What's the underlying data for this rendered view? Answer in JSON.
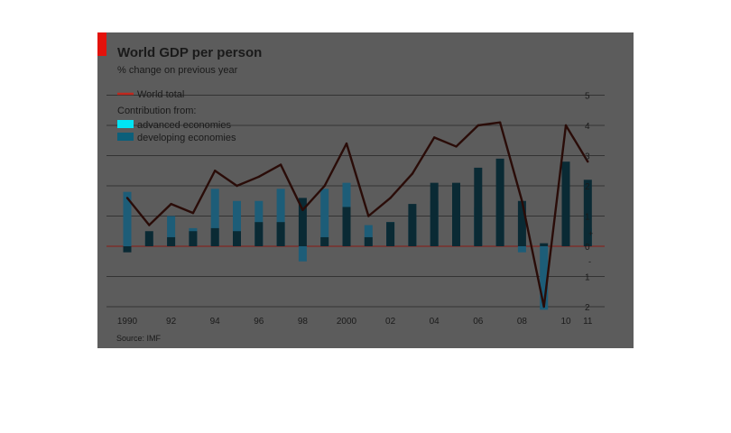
{
  "chart_data": {
    "type": "bar",
    "title": "World GDP per person",
    "subtitle": "% change on previous year",
    "source": "Source: IMF",
    "legend": {
      "line_label": "World total",
      "group_heading": "Contribution from:",
      "placement": "top-left"
    },
    "x_tick_labels": [
      {
        "year": 1990,
        "label": "1990"
      },
      {
        "year": 1992,
        "label": "92"
      },
      {
        "year": 1994,
        "label": "94"
      },
      {
        "year": 1996,
        "label": "96"
      },
      {
        "year": 1998,
        "label": "98"
      },
      {
        "year": 2000,
        "label": "2000"
      },
      {
        "year": 2002,
        "label": "02"
      },
      {
        "year": 2004,
        "label": "04"
      },
      {
        "year": 2006,
        "label": "06"
      },
      {
        "year": 2008,
        "label": "08"
      },
      {
        "year": 2010,
        "label": "10"
      },
      {
        "year": 2011,
        "label": "11"
      }
    ],
    "y_ticks": [
      {
        "value": 5,
        "label": "5"
      },
      {
        "value": 4,
        "label": "4"
      },
      {
        "value": 3,
        "label": "3"
      },
      {
        "value": 2,
        "label": "2"
      },
      {
        "value": 1,
        "label": "1"
      },
      {
        "value": 0,
        "label": "0"
      },
      {
        "value": -1,
        "label": "1"
      },
      {
        "value": -2,
        "label": "2"
      }
    ],
    "y_sign_labels": {
      "plus": "+",
      "minus": "-"
    },
    "ylim": [
      -2,
      5
    ],
    "grid": true,
    "categories": [
      1990,
      1991,
      1992,
      1993,
      1994,
      1995,
      1996,
      1997,
      1998,
      1999,
      2000,
      2001,
      2002,
      2003,
      2004,
      2005,
      2006,
      2007,
      2008,
      2009,
      2010,
      2011
    ],
    "series": [
      {
        "name": "advanced economies",
        "role": "bar-stack",
        "color": "#00e5f5",
        "values": [
          1.8,
          0.2,
          1.0,
          0.6,
          1.9,
          1.5,
          1.5,
          1.9,
          -0.5,
          1.9,
          2.1,
          0.7,
          0.8,
          1.0,
          1.5,
          1.2,
          1.3,
          1.2,
          -0.2,
          -2.1,
          1.2,
          0.6
        ]
      },
      {
        "name": "developing economies",
        "role": "bar-stack",
        "color": "#0c5f7a",
        "values": [
          -0.2,
          0.5,
          0.3,
          0.5,
          0.6,
          0.5,
          0.8,
          0.8,
          1.6,
          0.3,
          1.3,
          0.3,
          0.8,
          1.4,
          2.1,
          2.1,
          2.6,
          2.9,
          1.5,
          0.1,
          2.8,
          2.2
        ]
      },
      {
        "name": "World total",
        "role": "line",
        "color": "#c0281e",
        "values": [
          1.6,
          0.7,
          1.4,
          1.1,
          2.5,
          2.0,
          2.3,
          2.7,
          1.2,
          2.0,
          3.4,
          1.0,
          1.6,
          2.4,
          3.6,
          3.3,
          4.0,
          4.1,
          1.5,
          -2.0,
          4.0,
          2.8
        ]
      }
    ],
    "colors": {
      "background": "#ffffff",
      "plot_panel": "#5c5c5c",
      "gridline": "#333333",
      "zero_line": "#8a1a14",
      "text": "#1a1a1a",
      "accent_block": "#e3120b"
    }
  }
}
